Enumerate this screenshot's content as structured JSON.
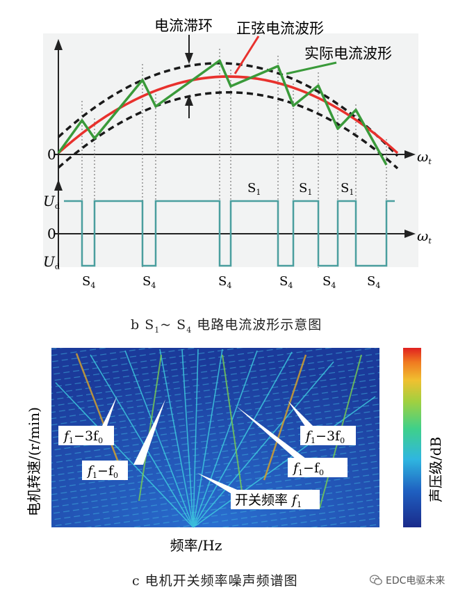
{
  "diagram_b": {
    "labels": {
      "hysteresis": "电流滞环",
      "sine": "正弦电流波形",
      "actual": "实际电流波形",
      "zero_top": "0",
      "axis_top": "ω",
      "axis_top_sub": "t",
      "ud_top": "U",
      "ud_top_sub": "d",
      "zero_bottom": "0",
      "axis_bottom": "ω",
      "axis_bottom_sub": "t",
      "ud_bottom": "U",
      "ud_bottom_sub": "d"
    },
    "s1_labels": [
      {
        "main": "S",
        "sub": "1"
      },
      {
        "main": "S",
        "sub": "1"
      },
      {
        "main": "S",
        "sub": "1"
      }
    ],
    "s4_labels": [
      {
        "main": "S",
        "sub": "4"
      },
      {
        "main": "S",
        "sub": "4"
      },
      {
        "main": "S",
        "sub": "4"
      },
      {
        "main": "S",
        "sub": "4"
      },
      {
        "main": "S",
        "sub": "4"
      },
      {
        "main": "S",
        "sub": "4"
      }
    ],
    "caption": {
      "prefix": "b   S",
      "sub1": "1",
      "mid": "~ S",
      "sub4": "4",
      "rest": " 电路电流波形示意图"
    },
    "colors": {
      "sine": "#e8312d",
      "actual": "#3a9a3a",
      "band": "#1a1a1a",
      "pulse": "#4a9e9e"
    }
  },
  "diagram_c": {
    "ylabel": "电机转速/(r/min)",
    "xlabel": "频率/Hz",
    "colorbar_label": "声压级/dB",
    "annotations": [
      {
        "main": "f",
        "sub1": "1",
        "mid": "−3f",
        "sub2": "0"
      },
      {
        "main": "f",
        "sub1": "1",
        "mid": "−f",
        "sub2": "0"
      },
      {
        "main": "f",
        "sub1": "1",
        "mid": "−3f",
        "sub2": "0"
      },
      {
        "main": "f",
        "sub1": "1",
        "mid": "−f",
        "sub2": "0"
      }
    ],
    "switch_label": {
      "text": "开关频率 ",
      "f": "f",
      "sub": "1"
    },
    "caption": "c   电机开关频率噪声频谱图"
  },
  "watermark": {
    "text": "EDC电驱未来",
    "icon": "wechat-icon"
  }
}
